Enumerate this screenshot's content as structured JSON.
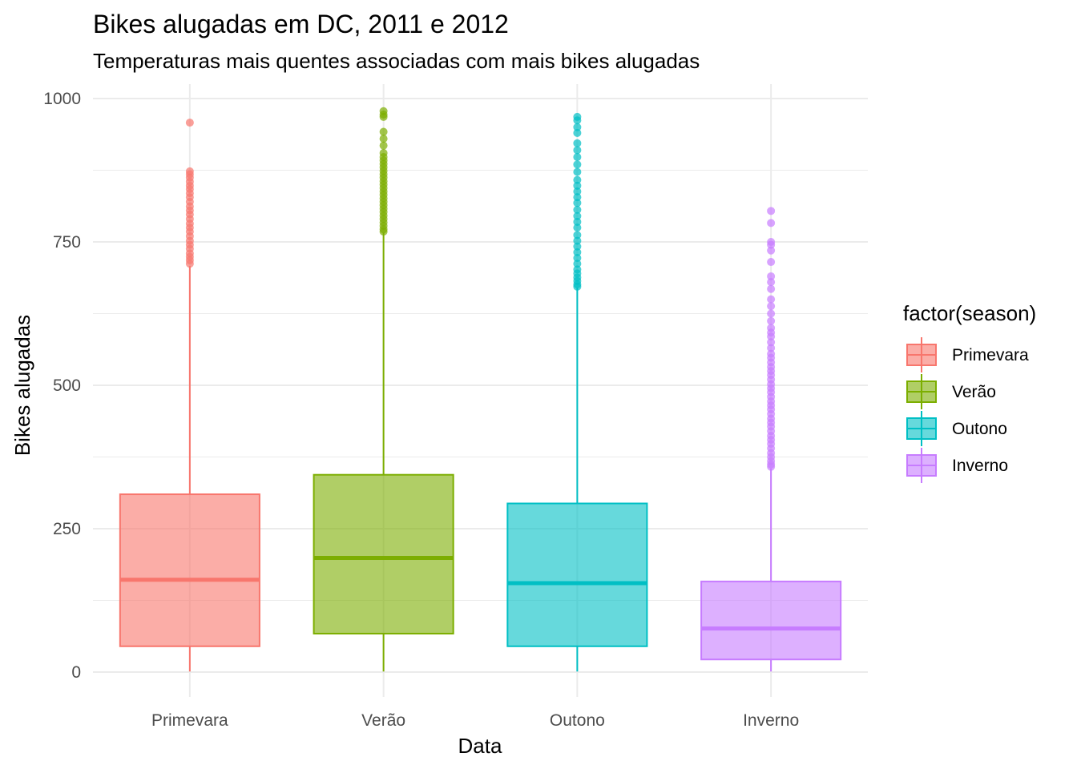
{
  "chart_data": {
    "type": "boxplot",
    "title": "Bikes alugadas em DC, 2011 e 2012",
    "subtitle": "Temperaturas mais quentes associadas com mais bikes alugadas",
    "xlabel": "Data",
    "ylabel": "Bikes alugadas",
    "ylim": [
      -40,
      1010
    ],
    "yticks": [
      0,
      250,
      500,
      750,
      1000
    ],
    "grid": true,
    "legend_title": "factor(season)",
    "legend_position": "right",
    "categories": [
      "Primevara",
      "Verão",
      "Outono",
      "Inverno"
    ],
    "series": [
      {
        "name": "Primevara",
        "color": "#F8766D",
        "min": 1,
        "q1": 45,
        "median": 161,
        "q3": 310,
        "whisker_high": 708,
        "outliers": [
          958,
          873,
          868,
          862,
          855,
          848,
          842,
          835,
          828,
          820,
          812,
          805,
          798,
          790,
          782,
          775,
          768,
          760,
          752,
          745,
          738,
          730,
          724,
          718,
          712
        ]
      },
      {
        "name": "Verão",
        "color": "#7CAE00",
        "min": 1,
        "q1": 67,
        "median": 199,
        "q3": 344,
        "whisker_high": 766,
        "outliers": [
          978,
          972,
          968,
          942,
          930,
          918,
          905,
          898,
          892,
          886,
          880,
          874,
          868,
          862,
          856,
          850,
          844,
          838,
          832,
          826,
          820,
          814,
          808,
          802,
          796,
          790,
          784,
          778,
          772,
          768
        ]
      },
      {
        "name": "Outono",
        "color": "#00BFC4",
        "min": 1,
        "q1": 45,
        "median": 155,
        "q3": 294,
        "whisker_high": 670,
        "outliers": [
          968,
          962,
          950,
          940,
          922,
          910,
          898,
          885,
          872,
          858,
          848,
          838,
          828,
          818,
          806,
          795,
          785,
          775,
          762,
          752,
          742,
          732,
          722,
          712,
          702,
          695,
          688,
          682,
          676,
          672
        ]
      },
      {
        "name": "Inverno",
        "color": "#C77CFF",
        "min": 1,
        "q1": 22,
        "median": 76,
        "q3": 158,
        "whisker_high": 355,
        "outliers": [
          804,
          783,
          750,
          745,
          735,
          715,
          690,
          680,
          668,
          650,
          638,
          625,
          612,
          600,
          592,
          585,
          575,
          565,
          555,
          548,
          540,
          532,
          525,
          518,
          510,
          502,
          495,
          488,
          480,
          472,
          465,
          458,
          450,
          442,
          435,
          428,
          420,
          412,
          405,
          398,
          390,
          382,
          375,
          368,
          362,
          358
        ]
      }
    ]
  }
}
